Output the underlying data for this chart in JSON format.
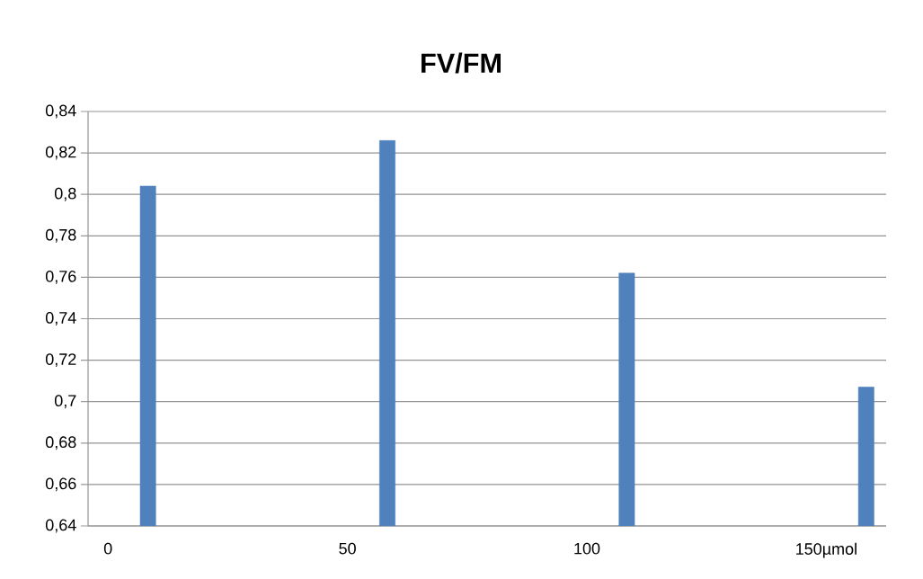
{
  "chart_data": {
    "type": "bar",
    "title": "FV/FM",
    "categories": [
      "0",
      null,
      null,
      null,
      null,
      null,
      "50",
      null,
      null,
      null,
      null,
      null,
      "100",
      null,
      null,
      null,
      null,
      null,
      "150µmol",
      null
    ],
    "values": [
      null,
      0.804,
      null,
      null,
      null,
      null,
      null,
      0.826,
      null,
      null,
      null,
      null,
      null,
      0.762,
      null,
      null,
      null,
      null,
      null,
      0.707
    ],
    "color": "#4f81bd",
    "ylim": [
      0.64,
      0.84
    ],
    "yticks": [
      {
        "value": 0.64,
        "label": "0,64"
      },
      {
        "value": 0.66,
        "label": "0,66"
      },
      {
        "value": 0.68,
        "label": "0,68"
      },
      {
        "value": 0.7,
        "label": "0,7"
      },
      {
        "value": 0.72,
        "label": "0,72"
      },
      {
        "value": 0.74,
        "label": "0,74"
      },
      {
        "value": 0.76,
        "label": "0,76"
      },
      {
        "value": 0.78,
        "label": "0,78"
      },
      {
        "value": 0.8,
        "label": "0,8"
      },
      {
        "value": 0.82,
        "label": "0,82"
      },
      {
        "value": 0.84,
        "label": "0,84"
      }
    ],
    "grid": "y"
  }
}
